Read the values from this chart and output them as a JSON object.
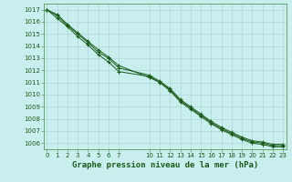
{
  "title": "Graphe pression niveau de la mer (hPa)",
  "bg_color": "#c8eeee",
  "grid_color": "#b0d8d8",
  "line_color": "#1a5c1a",
  "ylim": [
    1005.5,
    1017.5
  ],
  "yticks": [
    1006,
    1007,
    1008,
    1009,
    1010,
    1011,
    1012,
    1013,
    1014,
    1015,
    1016,
    1017
  ],
  "xlim": [
    -0.3,
    23.3
  ],
  "xtick_vals": [
    0,
    1,
    2,
    3,
    4,
    5,
    6,
    7,
    10,
    11,
    12,
    13,
    14,
    15,
    16,
    17,
    18,
    19,
    20,
    21,
    22,
    23
  ],
  "series1": {
    "x": [
      0,
      1,
      2,
      3,
      4,
      5,
      6,
      7,
      10,
      11,
      12,
      13,
      14,
      15,
      16,
      17,
      18,
      19,
      20,
      21,
      22,
      23
    ],
    "y": [
      1017.0,
      1016.6,
      1015.8,
      1015.1,
      1014.4,
      1013.7,
      1013.1,
      1012.4,
      1011.4,
      1011.0,
      1010.4,
      1009.5,
      1008.9,
      1008.3,
      1007.7,
      1007.2,
      1006.8,
      1006.4,
      1006.1,
      1006.0,
      1005.8,
      1005.8
    ]
  },
  "series2": {
    "x": [
      0,
      1,
      2,
      3,
      4,
      5,
      6,
      7,
      10,
      11,
      12,
      13,
      14,
      15,
      16,
      17,
      18,
      19,
      20,
      21,
      22,
      23
    ],
    "y": [
      1017.0,
      1016.5,
      1015.7,
      1015.0,
      1014.3,
      1013.5,
      1013.0,
      1012.2,
      1011.6,
      1011.1,
      1010.5,
      1009.6,
      1009.0,
      1008.4,
      1007.8,
      1007.3,
      1006.9,
      1006.5,
      1006.2,
      1006.1,
      1005.9,
      1005.9
    ]
  },
  "series3": {
    "x": [
      0,
      1,
      2,
      3,
      4,
      5,
      6,
      7,
      10,
      11,
      12,
      13,
      14,
      15,
      16,
      17,
      18,
      19,
      20,
      21,
      22,
      23
    ],
    "y": [
      1017.0,
      1016.3,
      1015.6,
      1014.8,
      1014.1,
      1013.3,
      1012.7,
      1011.9,
      1011.5,
      1011.0,
      1010.3,
      1009.4,
      1008.8,
      1008.2,
      1007.6,
      1007.1,
      1006.7,
      1006.3,
      1006.0,
      1005.9,
      1005.7,
      1005.7
    ]
  },
  "title_fontsize": 6.5,
  "tick_fontsize": 5.0,
  "marker_size": 3.5,
  "linewidth": 0.7
}
